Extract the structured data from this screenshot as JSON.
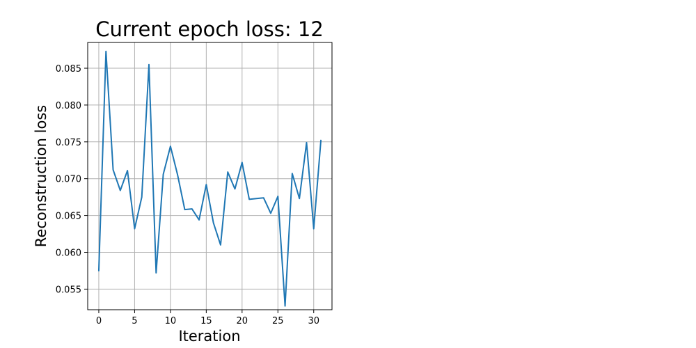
{
  "chart_data": {
    "type": "line",
    "title": "Current epoch loss: 12",
    "xlabel": "Iteration",
    "ylabel": "Reconstruction loss",
    "xlim": [
      -1.55,
      32.55
    ],
    "ylim": [
      0.0522,
      0.0885
    ],
    "x_ticks": [
      0,
      5,
      10,
      15,
      20,
      25,
      30
    ],
    "y_ticks": [
      0.055,
      0.06,
      0.065,
      0.07,
      0.075,
      0.08,
      0.085
    ],
    "y_tick_labels": [
      "0.055",
      "0.060",
      "0.065",
      "0.070",
      "0.075",
      "0.080",
      "0.085"
    ],
    "grid": true,
    "series": [
      {
        "color": "#1f77b4",
        "x": [
          0,
          1,
          2,
          3,
          4,
          5,
          6,
          7,
          8,
          9,
          10,
          11,
          12,
          13,
          14,
          15,
          16,
          17,
          18,
          19,
          20,
          21,
          22,
          23,
          24,
          25,
          26,
          27,
          28,
          29,
          30,
          31
        ],
        "y": [
          0.0575,
          0.0873,
          0.0712,
          0.0684,
          0.0711,
          0.0632,
          0.0675,
          0.0855,
          0.0572,
          0.0706,
          0.0744,
          0.0705,
          0.0658,
          0.0659,
          0.0644,
          0.0692,
          0.064,
          0.061,
          0.0709,
          0.0686,
          0.0722,
          0.0672,
          0.0673,
          0.0674,
          0.0653,
          0.0676,
          0.0527,
          0.0707,
          0.0673,
          0.0749,
          0.0632,
          0.0752
        ]
      }
    ]
  }
}
